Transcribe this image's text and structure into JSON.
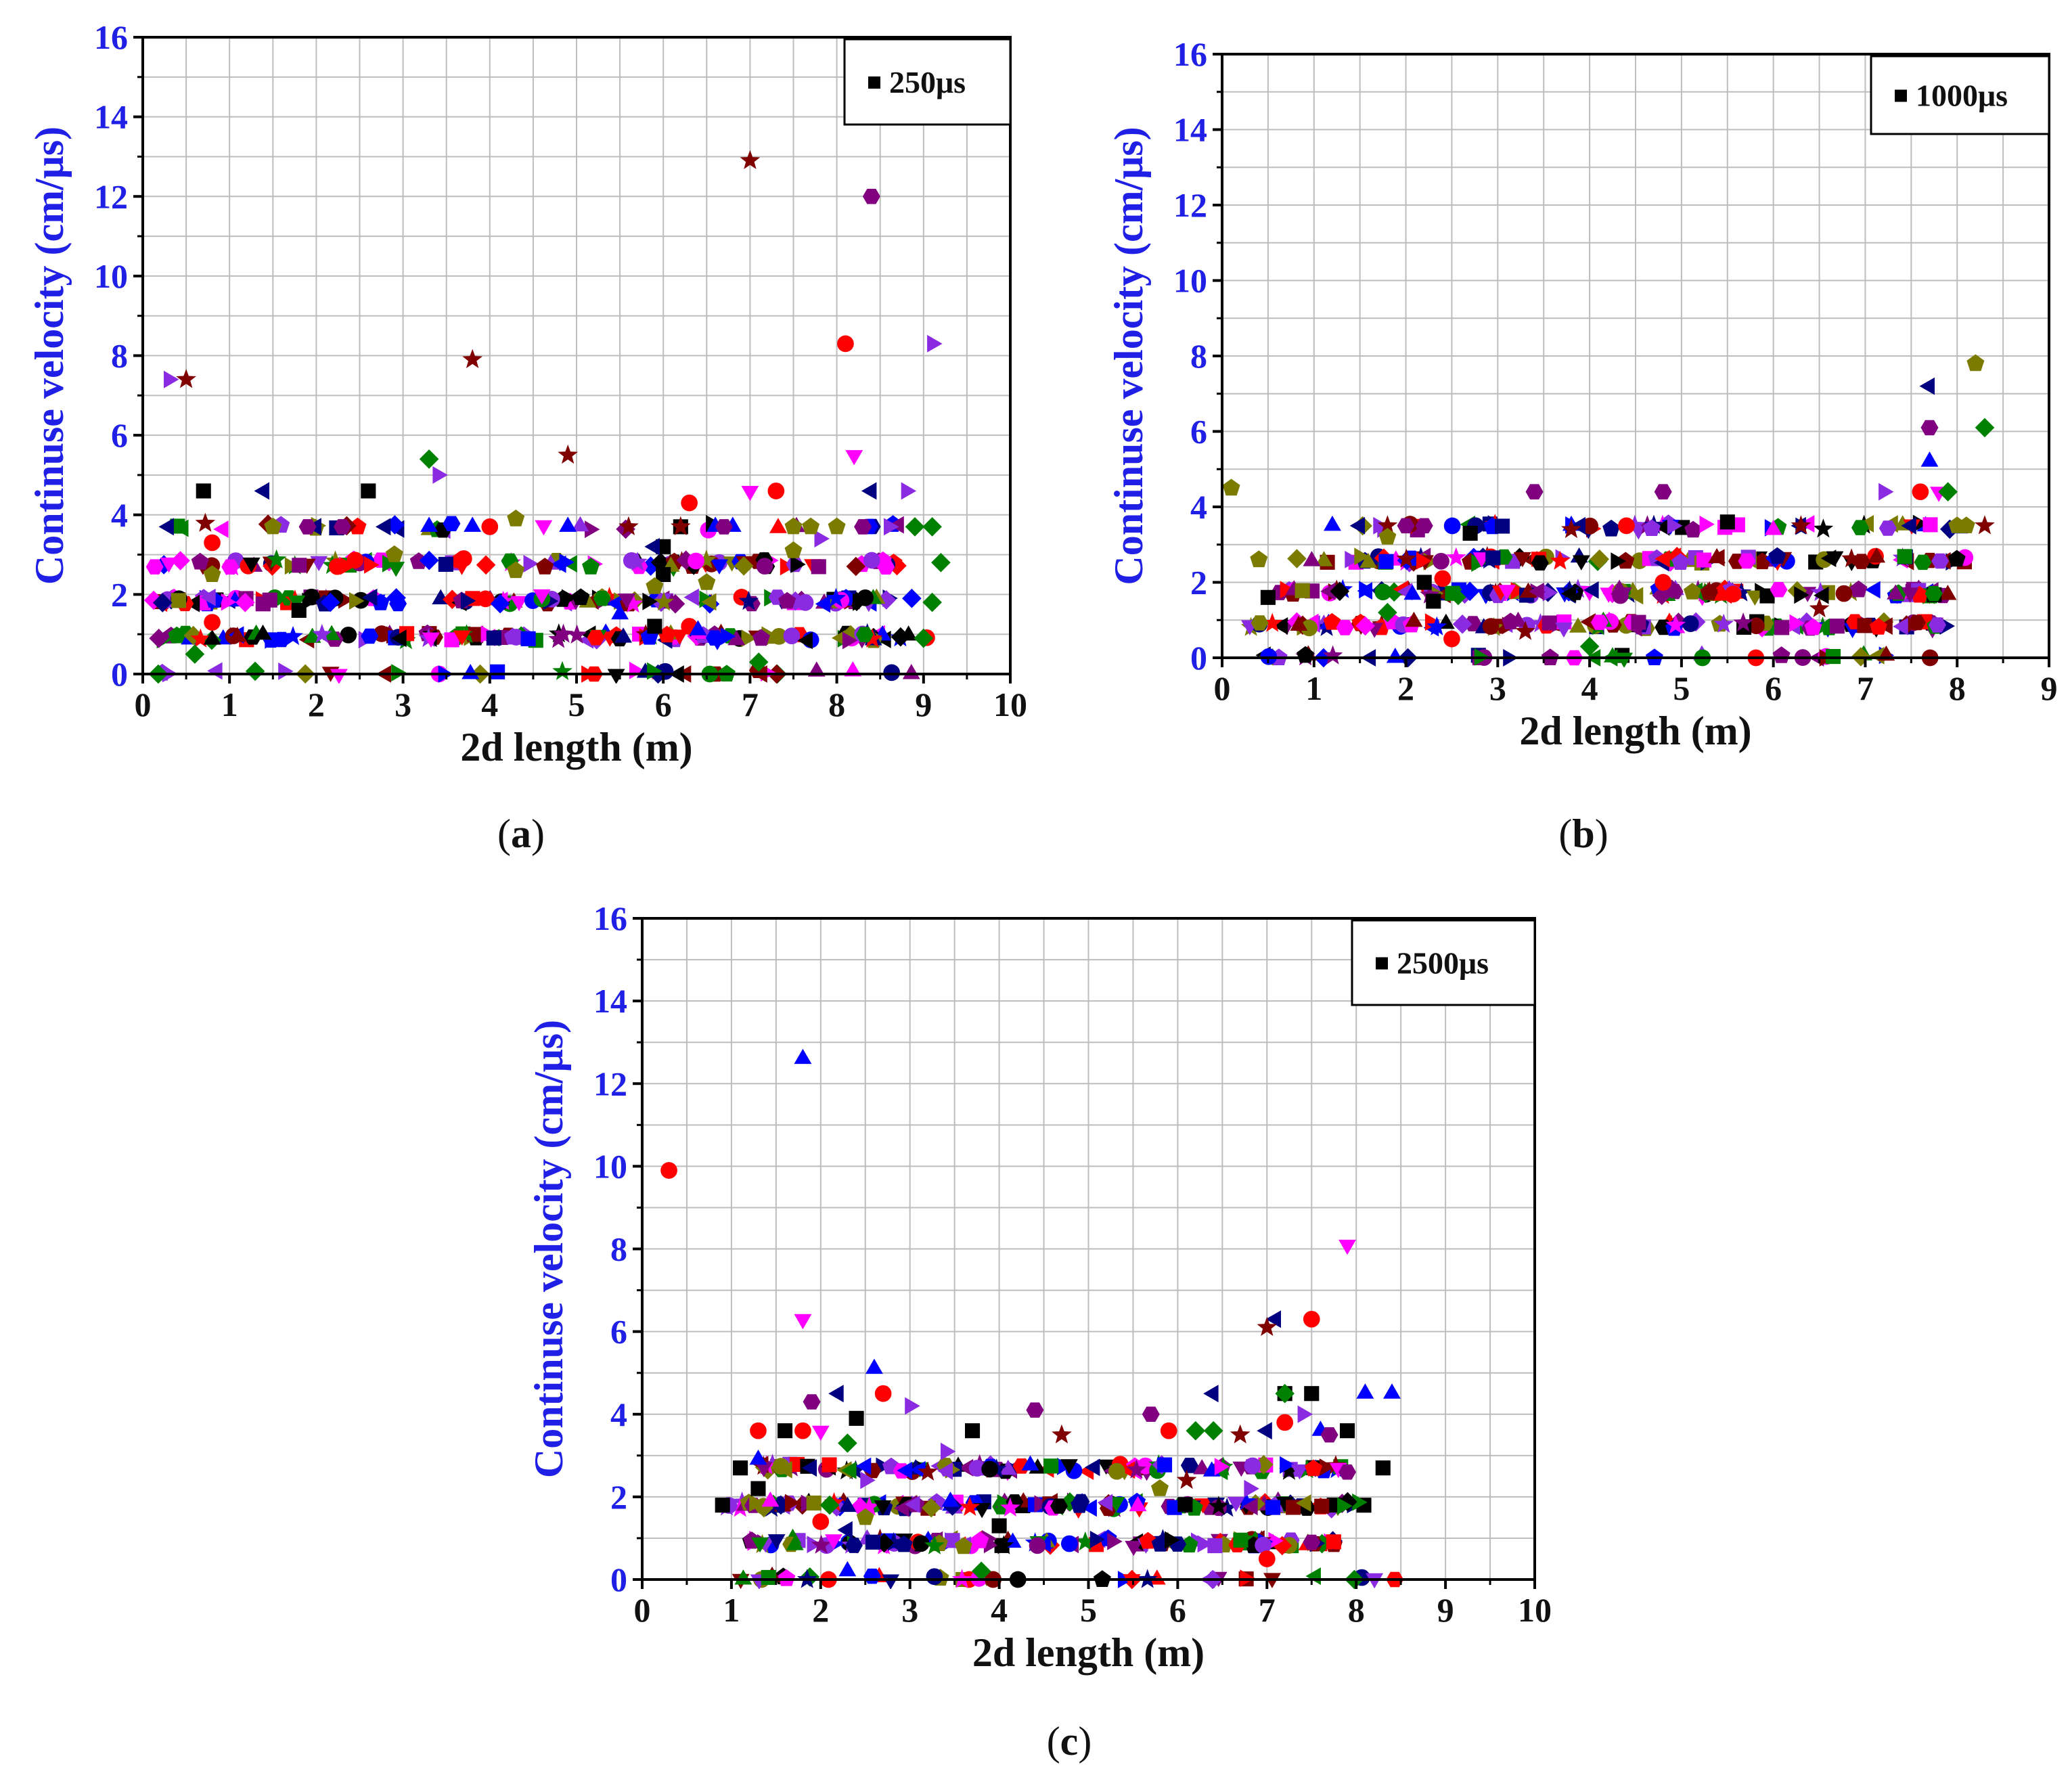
{
  "colors": {
    "axis_label": "#1f1fe6",
    "y_ticks": "#1f1fe6",
    "x_ticks": "#111111",
    "grid": "#bdbdbd",
    "series_palette": [
      "#0000ff",
      "#ff0000",
      "#800000",
      "#000080",
      "#8b008b",
      "#ff00ff",
      "#7b7b00",
      "#008000",
      "#000000",
      "#8a2be2"
    ]
  },
  "chart_data": [
    {
      "type": "scatter",
      "caption": "(a)",
      "legend": "250μs",
      "xlabel": "2d length (m)",
      "ylabel": "Continuse velocity (cm/μs)",
      "xlim": [
        0,
        10
      ],
      "ylim": [
        0,
        16
      ],
      "xticks": [
        0,
        1,
        2,
        3,
        4,
        5,
        6,
        7,
        8,
        9,
        10
      ],
      "yticks": [
        0,
        2,
        4,
        6,
        8,
        10,
        12,
        14,
        16
      ],
      "grid": true,
      "bands": {
        "levels": [
          0,
          0.93,
          1.85,
          2.78,
          3.7
        ],
        "ranges": [
          [
            0.1,
            8.9
          ],
          [
            0.1,
            9.1
          ],
          [
            0.1,
            8.9
          ],
          [
            0.1,
            8.7
          ],
          [
            0.3,
            8.9
          ]
        ],
        "counts": [
          40,
          140,
          140,
          100,
          30
        ]
      },
      "series": [
        {
          "name": "square",
          "marker": "square",
          "color": "#000000",
          "points": [
            [
              0.7,
              4.6
            ],
            [
              2.6,
              4.6
            ],
            [
              6.0,
              3.2
            ],
            [
              6.2,
              3.7
            ],
            [
              6.0,
              2.5
            ],
            [
              1.8,
              1.6
            ],
            [
              5.9,
              1.2
            ]
          ]
        },
        {
          "name": "circle",
          "marker": "circle",
          "color": "#ff0000",
          "points": [
            [
              0.8,
              3.3
            ],
            [
              4.0,
              3.7
            ],
            [
              3.7,
              2.9
            ],
            [
              8.1,
              8.3
            ],
            [
              7.3,
              4.6
            ],
            [
              6.3,
              4.3
            ],
            [
              6.3,
              1.2
            ],
            [
              0.8,
              1.3
            ]
          ]
        },
        {
          "name": "triangle-up",
          "marker": "triangle-up",
          "color": "#0000ff",
          "points": [
            [
              3.3,
              3.7
            ],
            [
              3.8,
              3.7
            ],
            [
              4.9,
              3.7
            ],
            [
              6.6,
              3.7
            ],
            [
              6.8,
              3.7
            ],
            [
              5.5,
              1.5
            ],
            [
              6.4,
              1.1
            ]
          ]
        },
        {
          "name": "triangle-down",
          "marker": "triangle-down",
          "color": "#ff00ff",
          "points": [
            [
              7.0,
              4.6
            ],
            [
              8.2,
              5.5
            ],
            [
              0.3,
              2.8
            ],
            [
              4.6,
              2.0
            ]
          ]
        },
        {
          "name": "diamond",
          "marker": "diamond",
          "color": "#008000",
          "points": [
            [
              3.3,
              5.4
            ],
            [
              8.9,
              3.7
            ],
            [
              9.1,
              3.7
            ],
            [
              9.0,
              0.9
            ],
            [
              9.1,
              1.8
            ],
            [
              9.2,
              2.8
            ],
            [
              0.6,
              0.5
            ],
            [
              7.1,
              0.3
            ]
          ]
        },
        {
          "name": "triangle-left",
          "marker": "triangle-left",
          "color": "#000080",
          "points": [
            [
              0.3,
              3.7
            ],
            [
              1.4,
              4.6
            ],
            [
              2.0,
              3.7
            ],
            [
              2.8,
              3.7
            ],
            [
              8.4,
              4.6
            ],
            [
              5.9,
              3.2
            ]
          ]
        },
        {
          "name": "triangle-right",
          "marker": "triangle-right",
          "color": "#8a2be2",
          "points": [
            [
              0.3,
              7.4
            ],
            [
              9.1,
              8.3
            ],
            [
              3.4,
              5.0
            ],
            [
              8.8,
              4.6
            ],
            [
              8.6,
              3.7
            ],
            [
              7.8,
              3.4
            ]
          ]
        },
        {
          "name": "hexagon",
          "marker": "hexagon",
          "color": "#800080",
          "points": [
            [
              8.4,
              12.0
            ],
            [
              1.9,
              3.7
            ],
            [
              2.3,
              3.7
            ],
            [
              6.7,
              3.7
            ],
            [
              8.3,
              3.7
            ]
          ]
        },
        {
          "name": "star",
          "marker": "star",
          "color": "#800000",
          "points": [
            [
              7.0,
              12.9
            ],
            [
              3.8,
              7.9
            ],
            [
              0.5,
              7.4
            ],
            [
              4.9,
              5.5
            ],
            [
              5.6,
              3.7
            ],
            [
              6.2,
              3.7
            ]
          ]
        },
        {
          "name": "pentagon",
          "marker": "pentagon",
          "color": "#7b7b00",
          "points": [
            [
              4.3,
              3.9
            ],
            [
              1.5,
              3.7
            ],
            [
              2.9,
              3.0
            ],
            [
              4.3,
              2.6
            ],
            [
              5.9,
              2.2
            ],
            [
              7.5,
              3.7
            ],
            [
              7.7,
              3.7
            ],
            [
              8.0,
              3.7
            ],
            [
              0.8,
              2.5
            ],
            [
              6.5,
              2.3
            ],
            [
              7.5,
              3.1
            ]
          ]
        }
      ]
    },
    {
      "type": "scatter",
      "caption": "(b)",
      "legend": "1000μs",
      "xlabel": "2d length (m)",
      "ylabel": "Continuse velocity (cm/μs)",
      "xlim": [
        0,
        9
      ],
      "ylim": [
        0,
        16
      ],
      "xticks": [
        0,
        1,
        2,
        3,
        4,
        5,
        6,
        7,
        8,
        9
      ],
      "yticks": [
        0,
        2,
        4,
        6,
        8,
        10,
        12,
        14,
        16
      ],
      "grid": true,
      "bands": {
        "levels": [
          0,
          0.87,
          1.73,
          2.6,
          3.47
        ],
        "ranges": [
          [
            0.3,
            7.8
          ],
          [
            0.3,
            7.9
          ],
          [
            0.5,
            7.9
          ],
          [
            0.8,
            8.1
          ],
          [
            1.2,
            8.2
          ]
        ],
        "counts": [
          40,
          130,
          140,
          110,
          50
        ]
      },
      "series": [
        {
          "name": "square",
          "marker": "square",
          "color": "#000000",
          "points": [
            [
              5.5,
              3.6
            ],
            [
              2.7,
              3.3
            ],
            [
              0.5,
              1.6
            ],
            [
              2.2,
              2.0
            ],
            [
              2.3,
              1.5
            ]
          ]
        },
        {
          "name": "circle",
          "marker": "circle",
          "color": "#ff0000",
          "points": [
            [
              7.6,
              4.4
            ],
            [
              4.4,
              3.5
            ],
            [
              2.4,
              2.1
            ],
            [
              2.5,
              0.5
            ],
            [
              4.8,
              2.0
            ]
          ]
        },
        {
          "name": "triangle-up",
          "marker": "triangle-up",
          "color": "#0000ff",
          "points": [
            [
              7.7,
              5.2
            ],
            [
              3.8,
              3.5
            ],
            [
              1.2,
              3.5
            ]
          ]
        },
        {
          "name": "triangle-down",
          "marker": "triangle-down",
          "color": "#ff00ff",
          "points": [
            [
              7.8,
              4.4
            ],
            [
              3.1,
              1.8
            ]
          ]
        },
        {
          "name": "diamond",
          "marker": "diamond",
          "color": "#008000",
          "points": [
            [
              8.3,
              6.1
            ],
            [
              7.9,
              4.4
            ],
            [
              1.8,
              1.2
            ],
            [
              4.0,
              0.3
            ]
          ]
        },
        {
          "name": "triangle-left",
          "marker": "triangle-left",
          "color": "#000080",
          "points": [
            [
              7.7,
              7.2
            ],
            [
              1.5,
              3.5
            ],
            [
              3.9,
              3.5
            ],
            [
              6.3,
              3.5
            ],
            [
              7.5,
              3.5
            ]
          ]
        },
        {
          "name": "triangle-right",
          "marker": "triangle-right",
          "color": "#8a2be2",
          "points": [
            [
              7.2,
              4.4
            ],
            [
              4.9,
              3.5
            ],
            [
              1.7,
              3.5
            ]
          ]
        },
        {
          "name": "hexagon",
          "marker": "hexagon",
          "color": "#800080",
          "points": [
            [
              7.7,
              6.1
            ],
            [
              3.4,
              4.4
            ],
            [
              4.8,
              4.4
            ],
            [
              2.0,
              3.5
            ],
            [
              2.2,
              3.5
            ]
          ]
        },
        {
          "name": "star",
          "marker": "star",
          "color": "#800000",
          "points": [
            [
              8.3,
              3.5
            ],
            [
              1.8,
              3.5
            ],
            [
              3.8,
              3.4
            ],
            [
              6.3,
              3.5
            ],
            [
              3.3,
              0.7
            ],
            [
              6.5,
              1.3
            ]
          ]
        },
        {
          "name": "pentagon",
          "marker": "pentagon",
          "color": "#7b7b00",
          "points": [
            [
              0.1,
              4.5
            ],
            [
              8.2,
              7.8
            ],
            [
              0.4,
              2.6
            ],
            [
              1.8,
              3.2
            ],
            [
              8.1,
              3.5
            ],
            [
              8.0,
              3.5
            ]
          ]
        }
      ]
    },
    {
      "type": "scatter",
      "caption": "(c)",
      "legend": "2500μs",
      "xlabel": "2d length (m)",
      "ylabel": "Continuse velocity (cm/μs)",
      "xlim": [
        0,
        10
      ],
      "ylim": [
        0,
        16
      ],
      "xticks": [
        0,
        1,
        2,
        3,
        4,
        5,
        6,
        7,
        8,
        9,
        10
      ],
      "yticks": [
        0,
        2,
        4,
        6,
        8,
        10,
        12,
        14,
        16
      ],
      "grid": true,
      "bands": {
        "levels": [
          0,
          0.9,
          1.8,
          2.7
        ],
        "ranges": [
          [
            1.0,
            8.8
          ],
          [
            1.2,
            7.8
          ],
          [
            0.9,
            8.1
          ],
          [
            1.3,
            7.9
          ]
        ],
        "counts": [
          40,
          120,
          140,
          110
        ]
      },
      "series": [
        {
          "name": "square",
          "marker": "square",
          "color": "#000000",
          "points": [
            [
              2.4,
              3.9
            ],
            [
              1.6,
              3.6
            ],
            [
              3.7,
              3.6
            ],
            [
              7.2,
              4.5
            ],
            [
              7.5,
              4.5
            ],
            [
              8.3,
              2.7
            ],
            [
              0.9,
              1.8
            ],
            [
              1.1,
              2.7
            ],
            [
              1.3,
              2.2
            ],
            [
              4.0,
              1.3
            ],
            [
              7.9,
              3.6
            ]
          ]
        },
        {
          "name": "circle",
          "marker": "circle",
          "color": "#ff0000",
          "points": [
            [
              0.3,
              9.9
            ],
            [
              7.5,
              6.3
            ],
            [
              2.7,
              4.5
            ],
            [
              1.3,
              3.6
            ],
            [
              1.8,
              3.6
            ],
            [
              7.2,
              3.8
            ],
            [
              5.9,
              3.6
            ],
            [
              7.0,
              0.5
            ],
            [
              2.0,
              1.4
            ]
          ]
        },
        {
          "name": "triangle-up",
          "marker": "triangle-up",
          "color": "#0000ff",
          "points": [
            [
              1.8,
              12.6
            ],
            [
              2.6,
              5.1
            ],
            [
              8.1,
              4.5
            ],
            [
              8.4,
              4.5
            ],
            [
              7.6,
              3.6
            ],
            [
              1.3,
              2.9
            ],
            [
              2.3,
              0.2
            ]
          ]
        },
        {
          "name": "triangle-down",
          "marker": "triangle-down",
          "color": "#ff00ff",
          "points": [
            [
              7.9,
              8.1
            ],
            [
              1.8,
              6.3
            ],
            [
              2.0,
              3.6
            ],
            [
              7.8,
              2.7
            ]
          ]
        },
        {
          "name": "diamond",
          "marker": "diamond",
          "color": "#008000",
          "points": [
            [
              7.2,
              4.5
            ],
            [
              6.2,
              3.6
            ],
            [
              6.4,
              3.6
            ],
            [
              2.3,
              3.3
            ],
            [
              2.1,
              1.8
            ],
            [
              3.8,
              0.2
            ]
          ]
        },
        {
          "name": "triangle-left",
          "marker": "triangle-left",
          "color": "#000080",
          "points": [
            [
              7.1,
              6.3
            ],
            [
              2.2,
              4.5
            ],
            [
              6.4,
              4.5
            ],
            [
              7.0,
              3.6
            ],
            [
              1.9,
              2.7
            ],
            [
              2.3,
              1.2
            ]
          ]
        },
        {
          "name": "triangle-right",
          "marker": "triangle-right",
          "color": "#8a2be2",
          "points": [
            [
              3.0,
              4.2
            ],
            [
              7.4,
              4.0
            ],
            [
              3.4,
              3.1
            ],
            [
              2.5,
              2.4
            ],
            [
              6.8,
              2.2
            ]
          ]
        },
        {
          "name": "hexagon",
          "marker": "hexagon",
          "color": "#800080",
          "points": [
            [
              1.9,
              4.3
            ],
            [
              4.4,
              4.1
            ],
            [
              5.7,
              4.0
            ],
            [
              7.7,
              3.5
            ],
            [
              7.9,
              2.6
            ],
            [
              7.5,
              0.9
            ]
          ]
        },
        {
          "name": "star",
          "marker": "star",
          "color": "#800000",
          "points": [
            [
              7.0,
              6.1
            ],
            [
              4.7,
              3.5
            ],
            [
              6.7,
              3.5
            ],
            [
              6.1,
              2.4
            ],
            [
              3.2,
              2.6
            ]
          ]
        },
        {
          "name": "pentagon",
          "marker": "pentagon",
          "color": "#7b7b00",
          "points": [
            [
              3.6,
              0.8
            ],
            [
              5.8,
              2.2
            ],
            [
              2.5,
              1.5
            ]
          ]
        }
      ]
    }
  ]
}
